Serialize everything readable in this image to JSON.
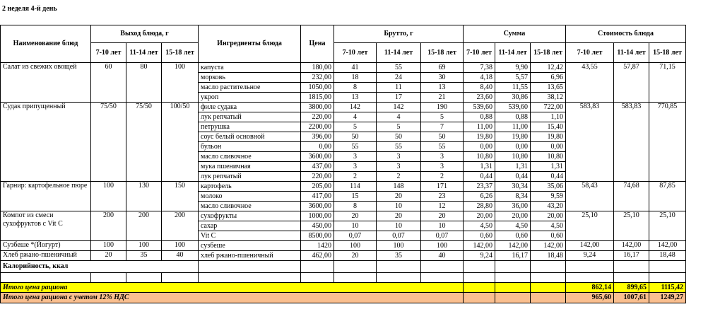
{
  "title": "2 неделя 4-й день",
  "header": {
    "name": "Наименование блюд",
    "yield": "Выход блюда, г",
    "ingredients": "Ингредиенты блюда",
    "price": "Цена",
    "gross": "Брутто, г",
    "sum": "Сумма",
    "cost": "Стоимость блюда",
    "ages": [
      "7-10 лет",
      "11-14 лет",
      "15-18 лет"
    ]
  },
  "dishes": [
    {
      "name": "Салат из свежих овощей",
      "yield": [
        "60",
        "80",
        "100"
      ],
      "cost": [
        "43,55",
        "57,87",
        "71,15"
      ],
      "ingredients": [
        {
          "name": "капуста",
          "price": "180,00",
          "gross": [
            "41",
            "55",
            "69"
          ],
          "sum": [
            "7,38",
            "9,90",
            "12,42"
          ]
        },
        {
          "name": "морковь",
          "price": "232,00",
          "gross": [
            "18",
            "24",
            "30"
          ],
          "sum": [
            "4,18",
            "5,57",
            "6,96"
          ]
        },
        {
          "name": "масло растительное",
          "price": "1050,00",
          "gross": [
            "8",
            "11",
            "13"
          ],
          "sum": [
            "8,40",
            "11,55",
            "13,65"
          ]
        },
        {
          "name": "укроп",
          "price": "1815,00",
          "gross": [
            "13",
            "17",
            "21"
          ],
          "sum": [
            "23,60",
            "30,86",
            "38,12"
          ]
        }
      ]
    },
    {
      "name": "Судак припущенный",
      "yield": [
        "75/50",
        "75/50",
        "100/50"
      ],
      "cost": [
        "583,83",
        "583,83",
        "770,85"
      ],
      "ingredients": [
        {
          "name": "филе судака",
          "price": "3800,00",
          "gross": [
            "142",
            "142",
            "190"
          ],
          "sum": [
            "539,60",
            "539,60",
            "722,00"
          ]
        },
        {
          "name": "лук репчатый",
          "price": "220,00",
          "gross": [
            "4",
            "4",
            "5"
          ],
          "sum": [
            "0,88",
            "0,88",
            "1,10"
          ]
        },
        {
          "name": "петрушка",
          "price": "2200,00",
          "gross": [
            "5",
            "5",
            "7"
          ],
          "sum": [
            "11,00",
            "11,00",
            "15,40"
          ]
        },
        {
          "name": "соус белый основной",
          "price": "396,00",
          "gross": [
            "50",
            "50",
            "50"
          ],
          "sum": [
            "19,80",
            "19,80",
            "19,80"
          ]
        },
        {
          "name": "бульон",
          "price": "0,00",
          "gross": [
            "55",
            "55",
            "55"
          ],
          "sum": [
            "0,00",
            "0,00",
            "0,00"
          ]
        },
        {
          "name": "масло сливочное",
          "price": "3600,00",
          "gross": [
            "3",
            "3",
            "3"
          ],
          "sum": [
            "10,80",
            "10,80",
            "10,80"
          ]
        },
        {
          "name": "мука пшеничная",
          "price": "437,00",
          "gross": [
            "3",
            "3",
            "3"
          ],
          "sum": [
            "1,31",
            "1,31",
            "1,31"
          ]
        },
        {
          "name": "лук репчатый",
          "price": "220,00",
          "gross": [
            "2",
            "2",
            "2"
          ],
          "sum": [
            "0,44",
            "0,44",
            "0,44"
          ]
        }
      ]
    },
    {
      "name": "Гарнир:  картофельное пюре",
      "yield": [
        "100",
        "130",
        "150"
      ],
      "cost": [
        "58,43",
        "74,68",
        "87,85"
      ],
      "ingredients": [
        {
          "name": "картофель",
          "price": "205,00",
          "gross": [
            "114",
            "148",
            "171"
          ],
          "sum": [
            "23,37",
            "30,34",
            "35,06"
          ]
        },
        {
          "name": "молоко",
          "price": "417,00",
          "gross": [
            "15",
            "20",
            "23"
          ],
          "sum": [
            "6,26",
            "8,34",
            "9,59"
          ]
        },
        {
          "name": "масло сливочное",
          "price": "3600,00",
          "gross": [
            "8",
            "10",
            "12"
          ],
          "sum": [
            "28,80",
            "36,00",
            "43,20"
          ]
        }
      ]
    },
    {
      "name": "Компот из смеси сухофруктов с Vit C",
      "yield": [
        "200",
        "200",
        "200"
      ],
      "cost": [
        "25,10",
        "25,10",
        "25,10"
      ],
      "ingredients": [
        {
          "name": "сухофрукты",
          "price": "1000,00",
          "gross": [
            "20",
            "20",
            "20"
          ],
          "sum": [
            "20,00",
            "20,00",
            "20,00"
          ]
        },
        {
          "name": "сахар",
          "price": "450,00",
          "gross": [
            "10",
            "10",
            "10"
          ],
          "sum": [
            "4,50",
            "4,50",
            "4,50"
          ]
        },
        {
          "name": "Vit C",
          "price": "8500,00",
          "gross": [
            "0,07",
            "0,07",
            "0,07"
          ],
          "sum": [
            "0,60",
            "0,60",
            "0,60"
          ]
        }
      ]
    },
    {
      "name": "Сузбеше *(Йогурт)",
      "yield": [
        "100",
        "100",
        "100"
      ],
      "cost": [
        "142,00",
        "142,00",
        "142,00"
      ],
      "ingredients": [
        {
          "name": "сузбеше",
          "price": "1420",
          "gross": [
            "100",
            "100",
            "100"
          ],
          "sum": [
            "142,00",
            "142,00",
            "142,00"
          ]
        }
      ]
    },
    {
      "name": "Хлеб ржано-пшеничный",
      "yield": [
        "20",
        "35",
        "40"
      ],
      "cost": [
        "9,24",
        "16,17",
        "18,48"
      ],
      "ingredients": [
        {
          "name": "хлеб ржано-пшеничный",
          "price": "462,00",
          "gross": [
            "20",
            "35",
            "40"
          ],
          "sum": [
            "9,24",
            "16,17",
            "18,48"
          ]
        }
      ]
    }
  ],
  "calories": "Калорийность, ккал",
  "totals": [
    {
      "label": "Итого цена рациона",
      "values": [
        "862,14",
        "899,65",
        "1115,42"
      ]
    },
    {
      "label": "Итого цена рациона с учетом 12% НДС",
      "values": [
        "965,60",
        "1007,61",
        "1249,27"
      ]
    }
  ]
}
